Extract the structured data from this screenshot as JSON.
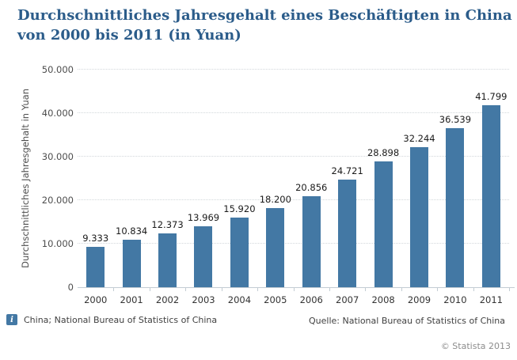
{
  "title_lines": [
    "Durchschnittliches Jahresgehalt eines Beschäftigten in China",
    "von 2000 bis 2011 (in Yuan)"
  ],
  "chart_data": {
    "type": "bar",
    "title": "Durchschnittliches Jahresgehalt eines Beschäftigten in China von 2000 bis 2011 (in Yuan)",
    "categories": [
      "2000",
      "2001",
      "2002",
      "2003",
      "2004",
      "2005",
      "2006",
      "2007",
      "2008",
      "2009",
      "2010",
      "2011"
    ],
    "values": [
      9333,
      10834,
      12373,
      13969,
      15920,
      18200,
      20856,
      24721,
      28898,
      32244,
      36539,
      41799
    ],
    "value_labels": [
      "9.333",
      "10.834",
      "12.373",
      "13.969",
      "15.920",
      "18.200",
      "20.856",
      "24.721",
      "28.898",
      "32.244",
      "36.539",
      "41.799"
    ],
    "xlabel": "",
    "ylabel": "Durchschnittliches Jahresgehalt in Yuan",
    "ylim": [
      0,
      50000
    ],
    "yticks": [
      {
        "value": 0,
        "label": "0"
      },
      {
        "value": 10000,
        "label": "10.000"
      },
      {
        "value": 20000,
        "label": "20.000"
      },
      {
        "value": 30000,
        "label": "30.000"
      },
      {
        "value": 40000,
        "label": "40.000"
      },
      {
        "value": 50000,
        "label": "50.000"
      }
    ],
    "grid": "horizontal-dotted",
    "legend": "none",
    "bar_color": "#4378A4"
  },
  "colors": {
    "title": "#2B5C8A",
    "bar": "#4378A4",
    "axis": "#c3ccd3",
    "gridline": "#d2d7db",
    "value_label": "#1a1a1a",
    "tick_label": "#4d4d4d",
    "footer_text": "#404040",
    "copyright": "#8c8c8c"
  },
  "footer": {
    "info_icon": "i",
    "description": "China; National Bureau of Statistics of China",
    "source": "Quelle: National Bureau of Statistics of China",
    "copyright": "© Statista 2013"
  }
}
